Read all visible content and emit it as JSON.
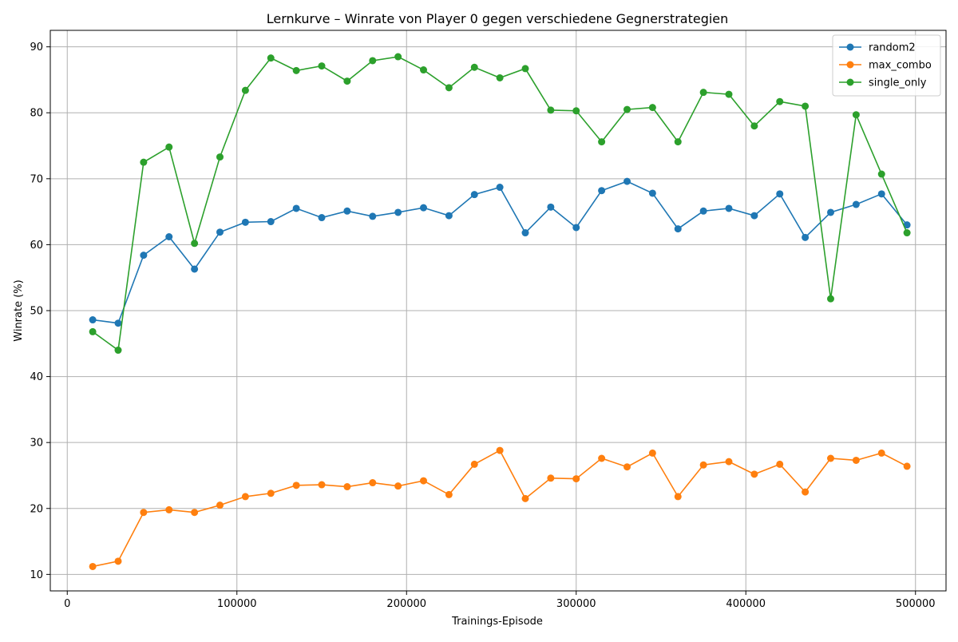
{
  "chart_data": {
    "type": "line",
    "title": "Lernkurve – Winrate von Player 0 gegen verschiedene Gegnerstrategien",
    "xlabel": "Trainings-Episode",
    "ylabel": "Winrate (%)",
    "xlim": [
      -10000,
      518000
    ],
    "ylim": [
      7.5,
      92.5
    ],
    "xticks": [
      0,
      100000,
      200000,
      300000,
      400000,
      500000
    ],
    "yticks": [
      10,
      20,
      30,
      40,
      50,
      60,
      70,
      80,
      90
    ],
    "grid": true,
    "legend_position": "top-right",
    "marker": "circle",
    "x": [
      15000,
      30000,
      45000,
      60000,
      75000,
      90000,
      105000,
      120000,
      135000,
      150000,
      165000,
      180000,
      195000,
      210000,
      225000,
      240000,
      255000,
      270000,
      285000,
      300000,
      315000,
      330000,
      345000,
      360000,
      375000,
      390000,
      405000,
      420000,
      435000,
      450000,
      465000,
      480000,
      495000
    ],
    "series": [
      {
        "name": "random2",
        "color": "#1f77b4",
        "values": [
          48.6,
          48.1,
          58.4,
          61.2,
          56.3,
          61.9,
          63.4,
          63.5,
          65.5,
          64.1,
          65.1,
          64.3,
          64.9,
          65.6,
          64.4,
          67.6,
          68.7,
          61.8,
          65.7,
          62.6,
          68.2,
          69.6,
          67.8,
          62.4,
          65.1,
          65.5,
          64.4,
          67.7,
          61.1,
          64.9,
          66.1,
          67.7,
          63.0
        ]
      },
      {
        "name": "max_combo",
        "color": "#ff7f0e",
        "values": [
          11.2,
          12.0,
          19.4,
          19.8,
          19.4,
          20.5,
          21.8,
          22.3,
          23.5,
          23.6,
          23.3,
          23.9,
          23.4,
          24.2,
          22.1,
          26.7,
          28.8,
          21.5,
          24.6,
          24.5,
          27.6,
          26.3,
          28.4,
          21.8,
          26.6,
          27.1,
          25.2,
          26.7,
          22.5,
          27.6,
          27.3,
          28.4,
          26.4
        ]
      },
      {
        "name": "single_only",
        "color": "#2ca02c",
        "values": [
          46.8,
          44.0,
          72.5,
          74.8,
          60.2,
          73.3,
          83.4,
          88.3,
          86.4,
          87.1,
          84.8,
          87.9,
          88.5,
          86.5,
          83.8,
          86.9,
          85.3,
          86.7,
          80.4,
          80.3,
          75.6,
          80.5,
          80.8,
          75.6,
          83.1,
          82.8,
          78.0,
          81.7,
          81.0,
          51.8,
          79.7,
          70.7,
          61.8
        ]
      }
    ]
  }
}
